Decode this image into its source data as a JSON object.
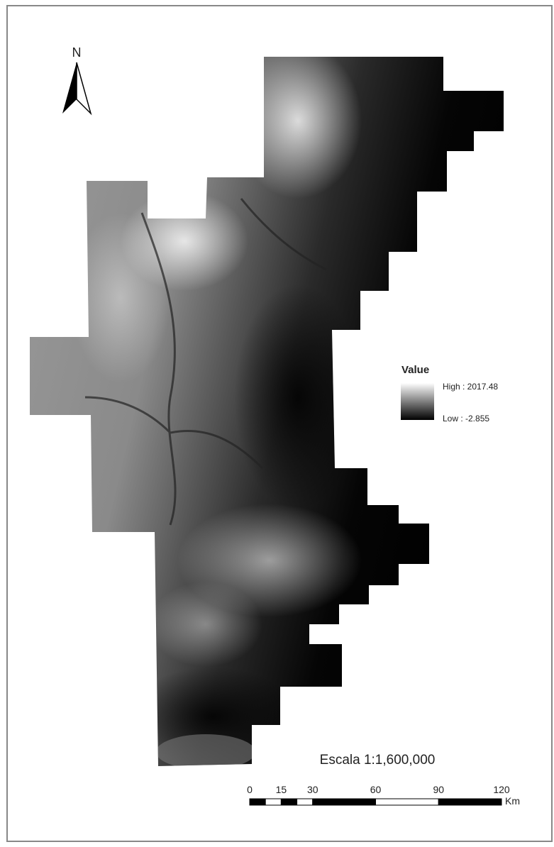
{
  "north_arrow": {
    "label": "N"
  },
  "legend": {
    "title": "Value",
    "high": "High : 2017.48",
    "low": "Low : -2.855"
  },
  "scale": {
    "title": "Escala 1:1,600,000",
    "ticks": [
      0,
      15,
      30,
      60,
      90,
      120
    ],
    "unit": "Km"
  }
}
